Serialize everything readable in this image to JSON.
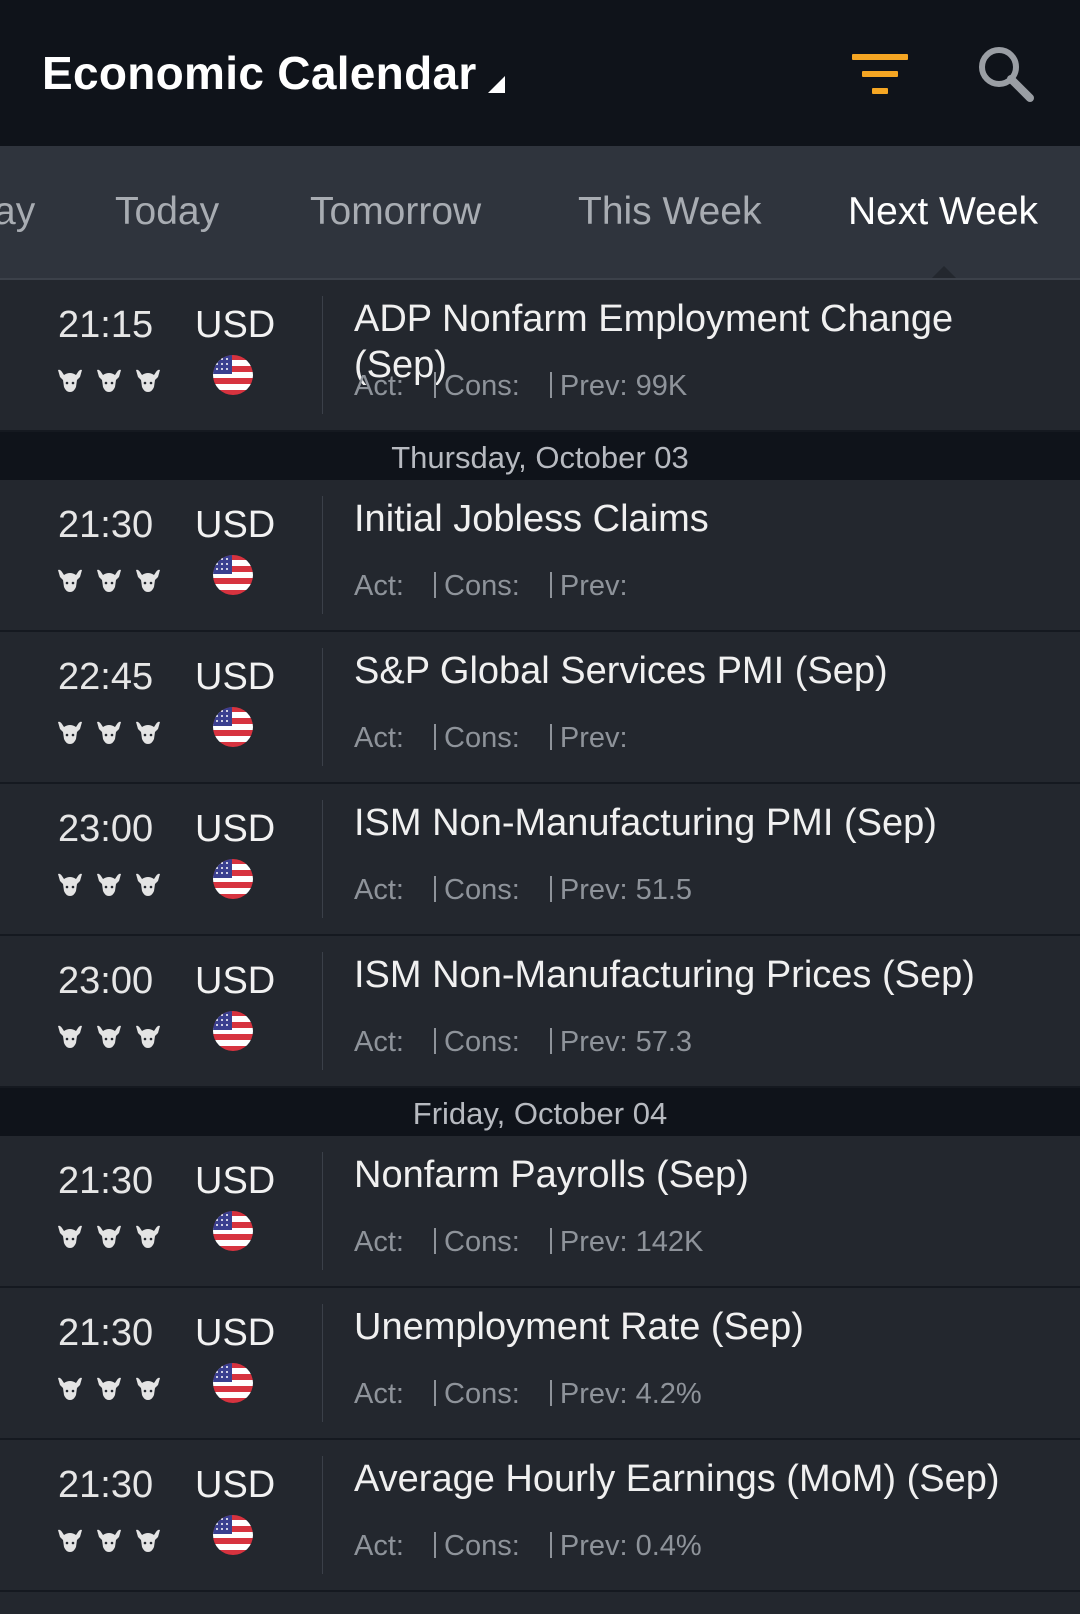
{
  "header": {
    "title": "Economic Calendar",
    "filter_icon": "filter-icon",
    "search_icon": "search-icon",
    "accent_color": "#f5a623"
  },
  "tabs": [
    {
      "label": "Yesterday",
      "visible_text": "ay",
      "active": false
    },
    {
      "label": "Today",
      "active": false
    },
    {
      "label": "Tomorrow",
      "active": false
    },
    {
      "label": "This Week",
      "active": false
    },
    {
      "label": "Next Week",
      "active": true
    }
  ],
  "labels": {
    "actual": "Act:",
    "consensus": "Cons:",
    "previous": "Prev:"
  },
  "sections": [
    {
      "date": "",
      "events": [
        {
          "time": "21:15",
          "currency": "USD",
          "title": "ADP Nonfarm Employment Change (Sep)",
          "actual": "",
          "consensus": "",
          "previous": "99K",
          "importance": 3
        }
      ]
    },
    {
      "date": "Thursday, October 03",
      "events": [
        {
          "time": "21:30",
          "currency": "USD",
          "title": "Initial Jobless Claims",
          "actual": "",
          "consensus": "",
          "previous": "",
          "importance": 3
        },
        {
          "time": "22:45",
          "currency": "USD",
          "title": "S&P Global Services PMI (Sep)",
          "actual": "",
          "consensus": "",
          "previous": "",
          "importance": 3
        },
        {
          "time": "23:00",
          "currency": "USD",
          "title": "ISM Non-Manufacturing PMI (Sep)",
          "actual": "",
          "consensus": "",
          "previous": "51.5",
          "importance": 3
        },
        {
          "time": "23:00",
          "currency": "USD",
          "title": "ISM Non-Manufacturing Prices (Sep)",
          "actual": "",
          "consensus": "",
          "previous": "57.3",
          "importance": 3
        }
      ]
    },
    {
      "date": "Friday, October 04",
      "events": [
        {
          "time": "21:30",
          "currency": "USD",
          "title": "Nonfarm Payrolls (Sep)",
          "actual": "",
          "consensus": "",
          "previous": "142K",
          "importance": 3
        },
        {
          "time": "21:30",
          "currency": "USD",
          "title": "Unemployment Rate (Sep)",
          "actual": "",
          "consensus": "",
          "previous": "4.2%",
          "importance": 3
        },
        {
          "time": "21:30",
          "currency": "USD",
          "title": "Average Hourly Earnings (MoM) (Sep)",
          "actual": "",
          "consensus": "",
          "previous": "0.4%",
          "importance": 3
        }
      ]
    }
  ]
}
